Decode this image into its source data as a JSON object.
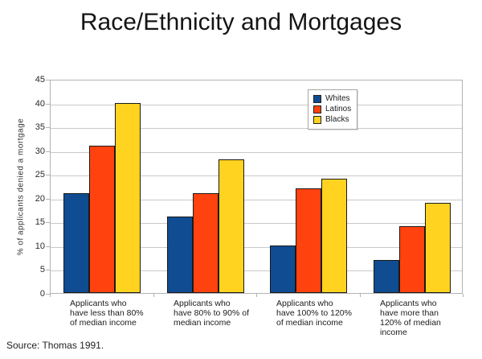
{
  "title": "Race/Ethnicity and Mortgages",
  "source_note": "Source: Thomas 1991.",
  "chart_data": {
    "type": "bar",
    "title": "Race/Ethnicity and Mortgages",
    "ylabel": "% of applicants denied a mortgage",
    "xlabel": "",
    "ylim": [
      0,
      45
    ],
    "ytick_step": 5,
    "grid": true,
    "legend_position": "top-right-inside",
    "categories": [
      "Applicants who\nhave less than 80%\nof median income",
      "Applicants who\nhave 80% to 90% of\nmedian income",
      "Applicants who\nhave 100% to 120%\nof median income",
      "Applicants who\nhave more than\n120% of median\nincome"
    ],
    "series": [
      {
        "name": "Whites",
        "color": "#0F4C91",
        "values": [
          21,
          16,
          10,
          7
        ]
      },
      {
        "name": "Latinos",
        "color": "#FF420E",
        "values": [
          31,
          21,
          22,
          14
        ]
      },
      {
        "name": "Blacks",
        "color": "#FFD320",
        "values": [
          40,
          28,
          24,
          19
        ]
      }
    ]
  }
}
